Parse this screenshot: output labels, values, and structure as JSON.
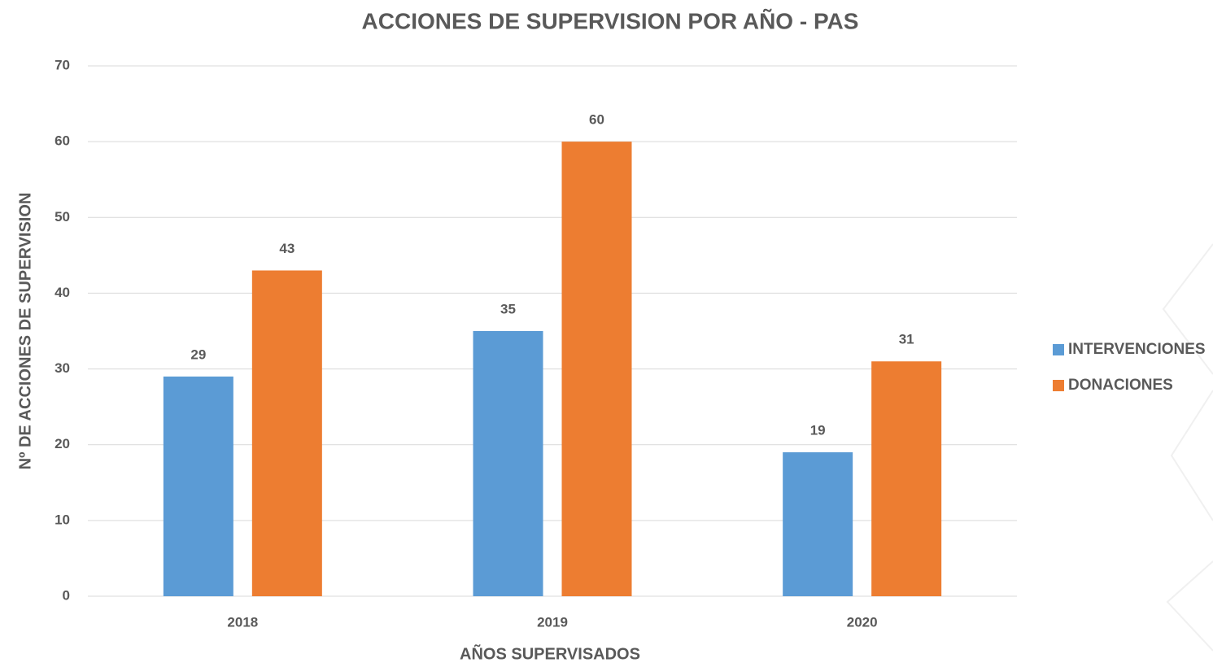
{
  "chart_data": {
    "type": "bar",
    "title": "ACCIONES DE SUPERVISION POR AÑO - PAS",
    "x_label": "AÑOS SUPERVISADOS",
    "y_label": "Nº DE ACCIONES DE SUPERVISION",
    "categories": [
      "2018",
      "2019",
      "2020"
    ],
    "series": [
      {
        "name": "INTERVENCIONES",
        "color": "#5b9bd5",
        "values": [
          29,
          35,
          19
        ]
      },
      {
        "name": "DONACIONES",
        "color": "#ed7d31",
        "values": [
          43,
          60,
          31
        ]
      }
    ],
    "ylim": [
      0,
      70
    ],
    "yticks": [
      0,
      10,
      20,
      30,
      40,
      50,
      60,
      70
    ],
    "grid": true,
    "legend": "right"
  }
}
